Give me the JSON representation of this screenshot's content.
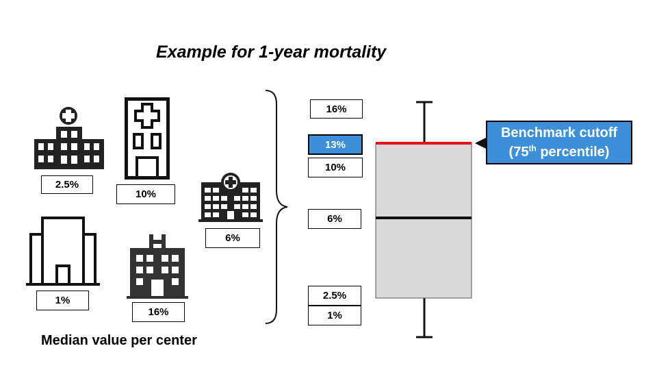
{
  "title": "Example for 1-year mortality",
  "caption": "Median value per center",
  "centers": [
    {
      "value": "2.5%",
      "icon": "hospital-cross-building-icon"
    },
    {
      "value": "10%",
      "icon": "tall-hospital-icon"
    },
    {
      "value": "6%",
      "icon": "hospital-block-icon"
    },
    {
      "value": "1%",
      "icon": "outline-building-icon"
    },
    {
      "value": "16%",
      "icon": "hospital-h-building-icon"
    }
  ],
  "sorted_values": [
    {
      "value": "16%",
      "highlight": false
    },
    {
      "value": "13%",
      "highlight": true
    },
    {
      "value": "10%",
      "highlight": false
    },
    {
      "value": "6%",
      "highlight": false
    },
    {
      "value": "2.5%",
      "highlight": false
    },
    {
      "value": "1%",
      "highlight": false
    }
  ],
  "callout": {
    "line1": "Benchmark cutoff",
    "line2_pre": "(75",
    "line2_sup": "th",
    "line2_post": " percentile)"
  },
  "boxplot": {
    "min": 1,
    "q1": 2.5,
    "median": 6,
    "q3": 13,
    "max": 16,
    "box_fill": "#d9d9d9",
    "cutoff_color": "#e8141c",
    "callout_color": "#3d8fd8"
  }
}
